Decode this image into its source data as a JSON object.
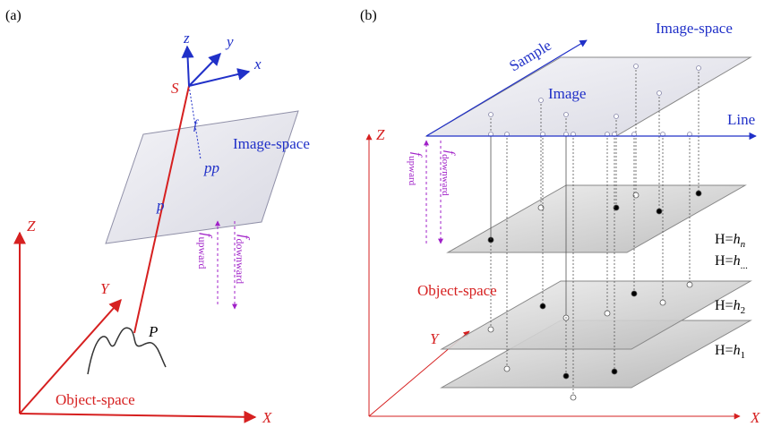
{
  "panel_a": {
    "label": "(a)",
    "camera": {
      "z": "z",
      "y": "y",
      "x": "x",
      "center": "S",
      "focal": "f",
      "principal_point": "pp",
      "image_point": "p"
    },
    "image_space": "Image-space",
    "axes": {
      "z": "Z",
      "y": "Y",
      "x": "X"
    },
    "ground_point": "P",
    "object_space": "Object-space",
    "f_upward": {
      "symbol": "f",
      "sub": "upward"
    },
    "f_downward": {
      "symbol": "f",
      "sub": "downward"
    }
  },
  "panel_b": {
    "label": "(b)",
    "sample": "Sample",
    "image_space": "Image-space",
    "image": "Image",
    "line": "Line",
    "axes": {
      "z": "Z",
      "y": "Y",
      "x": "X"
    },
    "f_upward": {
      "symbol": "f",
      "sub": "upward"
    },
    "f_downward": {
      "symbol": "f",
      "sub": "downward"
    },
    "layers": [
      {
        "prefix": "H=",
        "var": "h",
        "sub": "n"
      },
      {
        "prefix": "H=",
        "var": "h",
        "sub": "..."
      },
      {
        "prefix": "H=",
        "var": "h",
        "sub": "2"
      },
      {
        "prefix": "H=",
        "var": "h",
        "sub": "1"
      }
    ],
    "object_space": "Object-space"
  }
}
